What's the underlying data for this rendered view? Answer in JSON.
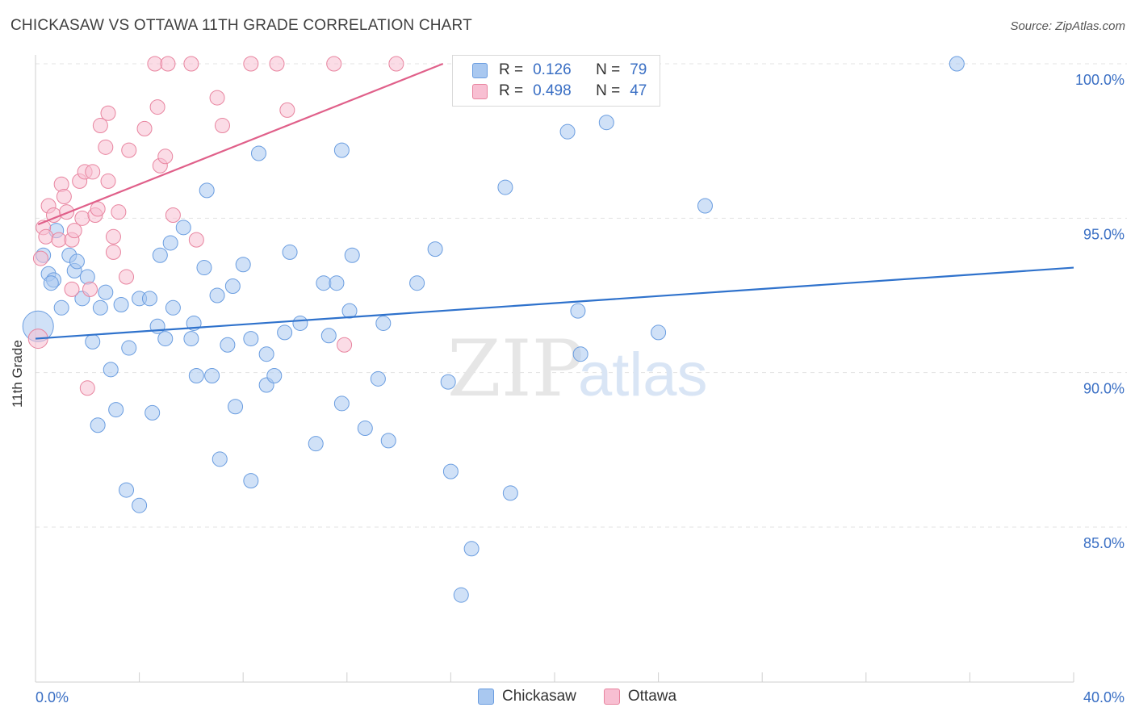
{
  "header": {
    "title": "CHICKASAW VS OTTAWA 11TH GRADE CORRELATION CHART",
    "source": "Source: ZipAtlas.com"
  },
  "legend": {
    "rows": [
      {
        "r_label": "R =",
        "r_value": "0.126",
        "n_label": "N =",
        "n_value": "79",
        "color": "#a9c8f0",
        "border": "#6a9de0"
      },
      {
        "r_label": "R =",
        "r_value": "0.498",
        "n_label": "N =",
        "n_value": "47",
        "color": "#f8bfd2",
        "border": "#e8849f"
      }
    ]
  },
  "watermark": {
    "zip": "ZIP",
    "atlas": "atlas"
  },
  "chart_data": {
    "type": "scatter",
    "title": "CHICKASAW VS OTTAWA 11TH GRADE CORRELATION CHART",
    "xlabel": "",
    "ylabel": "11th Grade",
    "xlim": [
      0,
      40
    ],
    "ylim": [
      80.5,
      100.5
    ],
    "x_tick_labels": [
      "0.0%",
      "40.0%"
    ],
    "y_ticks": [
      85,
      90,
      95,
      100
    ],
    "y_tick_labels": [
      "85.0%",
      "90.0%",
      "95.0%",
      "100.0%"
    ],
    "grid": true,
    "legend_position": "top-center",
    "series": [
      {
        "name": "Chickasaw",
        "color": "#a9c8f0",
        "edge": "#6a9de0",
        "line_color": "#2f72cc",
        "trend": {
          "x": [
            0,
            40
          ],
          "y": [
            91.1,
            93.4
          ]
        },
        "points": [
          [
            0.1,
            91.5
          ],
          [
            0.3,
            93.8
          ],
          [
            0.5,
            93.2
          ],
          [
            0.7,
            93.0
          ],
          [
            0.8,
            94.6
          ],
          [
            1.0,
            92.1
          ],
          [
            1.3,
            93.8
          ],
          [
            1.5,
            93.3
          ],
          [
            1.6,
            93.6
          ],
          [
            1.8,
            92.4
          ],
          [
            2.0,
            93.1
          ],
          [
            2.2,
            91.0
          ],
          [
            2.4,
            88.3
          ],
          [
            2.5,
            92.1
          ],
          [
            2.7,
            92.6
          ],
          [
            2.9,
            90.1
          ],
          [
            3.1,
            88.8
          ],
          [
            3.3,
            92.2
          ],
          [
            3.5,
            86.2
          ],
          [
            3.6,
            90.8
          ],
          [
            4.0,
            92.4
          ],
          [
            4.0,
            85.7
          ],
          [
            4.4,
            92.4
          ],
          [
            4.5,
            88.7
          ],
          [
            4.7,
            91.5
          ],
          [
            4.8,
            93.8
          ],
          [
            5.0,
            91.1
          ],
          [
            5.2,
            94.2
          ],
          [
            5.3,
            92.1
          ],
          [
            5.7,
            94.7
          ],
          [
            6.0,
            91.1
          ],
          [
            6.1,
            91.6
          ],
          [
            6.2,
            89.9
          ],
          [
            6.5,
            93.4
          ],
          [
            6.6,
            95.9
          ],
          [
            6.8,
            89.9
          ],
          [
            7.0,
            92.5
          ],
          [
            7.1,
            87.2
          ],
          [
            7.4,
            90.9
          ],
          [
            7.6,
            92.8
          ],
          [
            7.7,
            88.9
          ],
          [
            8.0,
            93.5
          ],
          [
            8.3,
            91.1
          ],
          [
            8.3,
            86.5
          ],
          [
            8.6,
            97.1
          ],
          [
            8.9,
            89.6
          ],
          [
            8.9,
            90.6
          ],
          [
            9.2,
            89.9
          ],
          [
            9.6,
            91.3
          ],
          [
            9.8,
            93.9
          ],
          [
            10.2,
            91.6
          ],
          [
            10.8,
            87.7
          ],
          [
            11.1,
            92.9
          ],
          [
            11.3,
            91.2
          ],
          [
            11.6,
            92.9
          ],
          [
            11.8,
            89.0
          ],
          [
            11.8,
            97.2
          ],
          [
            12.1,
            92.0
          ],
          [
            12.2,
            93.8
          ],
          [
            12.7,
            88.2
          ],
          [
            13.2,
            89.8
          ],
          [
            13.4,
            91.6
          ],
          [
            13.6,
            87.8
          ],
          [
            14.7,
            92.9
          ],
          [
            15.4,
            94.0
          ],
          [
            15.9,
            89.7
          ],
          [
            16.0,
            86.8
          ],
          [
            16.8,
            84.3
          ],
          [
            16.4,
            82.8
          ],
          [
            18.1,
            96.0
          ],
          [
            18.3,
            86.1
          ],
          [
            20.5,
            97.8
          ],
          [
            20.9,
            92.0
          ],
          [
            21.0,
            90.6
          ],
          [
            22.0,
            98.1
          ],
          [
            24.0,
            91.3
          ],
          [
            25.8,
            95.4
          ],
          [
            35.5,
            100.0
          ],
          [
            0.6,
            92.9
          ]
        ]
      },
      {
        "name": "Ottawa",
        "color": "#f8bfd2",
        "edge": "#e8849f",
        "line_color": "#e0608a",
        "trend": {
          "x": [
            0.1,
            15.7
          ],
          "y": [
            94.8,
            100.0
          ]
        },
        "points": [
          [
            0.1,
            91.1
          ],
          [
            0.2,
            93.7
          ],
          [
            0.3,
            94.7
          ],
          [
            0.4,
            94.4
          ],
          [
            0.5,
            95.4
          ],
          [
            0.7,
            95.1
          ],
          [
            0.9,
            94.3
          ],
          [
            1.0,
            96.1
          ],
          [
            1.1,
            95.7
          ],
          [
            1.2,
            95.2
          ],
          [
            1.4,
            94.3
          ],
          [
            1.4,
            92.7
          ],
          [
            1.5,
            94.6
          ],
          [
            1.7,
            96.2
          ],
          [
            1.8,
            95.0
          ],
          [
            1.9,
            96.5
          ],
          [
            2.0,
            89.5
          ],
          [
            2.1,
            92.7
          ],
          [
            2.2,
            96.5
          ],
          [
            2.3,
            95.1
          ],
          [
            2.4,
            95.3
          ],
          [
            2.5,
            98.0
          ],
          [
            2.7,
            97.3
          ],
          [
            2.8,
            98.4
          ],
          [
            2.8,
            96.2
          ],
          [
            3.0,
            94.4
          ],
          [
            3.0,
            93.9
          ],
          [
            3.2,
            95.2
          ],
          [
            3.5,
            93.1
          ],
          [
            3.6,
            97.2
          ],
          [
            4.2,
            97.9
          ],
          [
            4.6,
            100.0
          ],
          [
            4.7,
            98.6
          ],
          [
            4.8,
            96.7
          ],
          [
            5.0,
            97.0
          ],
          [
            5.1,
            100.0
          ],
          [
            5.3,
            95.1
          ],
          [
            6.0,
            100.0
          ],
          [
            6.2,
            94.3
          ],
          [
            7.0,
            98.9
          ],
          [
            7.2,
            98.0
          ],
          [
            8.3,
            100.0
          ],
          [
            9.3,
            100.0
          ],
          [
            9.7,
            98.5
          ],
          [
            11.5,
            100.0
          ],
          [
            11.9,
            90.9
          ],
          [
            13.9,
            100.0
          ]
        ]
      }
    ]
  },
  "bottom_legend": {
    "items": [
      {
        "label": "Chickasaw",
        "color": "#a9c8f0",
        "border": "#6a9de0"
      },
      {
        "label": "Ottawa",
        "color": "#f8bfd2",
        "border": "#e8849f"
      }
    ]
  }
}
